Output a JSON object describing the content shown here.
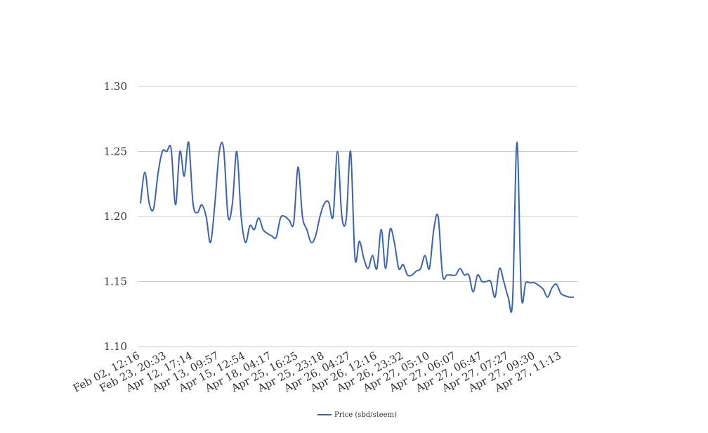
{
  "chart_data": {
    "type": "line",
    "title": "",
    "xlabel": "",
    "ylabel": "",
    "ylim": [
      1.1,
      1.3
    ],
    "y_ticks": [
      "1.10",
      "1.15",
      "1.20",
      "1.25",
      "1.30"
    ],
    "x_tick_labels": [
      "Feb 02, 12:16",
      "Feb 23, 20:33",
      "Apr 12, 17:14",
      "Apr 13, 09:57",
      "Apr 15, 12:54",
      "Apr 18, 04:17",
      "Apr 25, 16:25",
      "Apr 25, 23:18",
      "Apr 26, 04:27",
      "Apr 26, 12:16",
      "Apr 26, 23:32",
      "Apr 27, 05:10",
      "Apr 27, 06:07",
      "Apr 27, 06:47",
      "Apr 27, 07:27",
      "Apr 27, 09:30",
      "Apr 27, 11:13"
    ],
    "grid": true,
    "legend": "bottom",
    "series": [
      {
        "name": "Price (sbd/steem)",
        "color": "#3b63b3",
        "values": [
          1.21,
          1.234,
          1.21,
          1.206,
          1.233,
          1.25,
          1.25,
          1.252,
          1.209,
          1.25,
          1.231,
          1.257,
          1.21,
          1.203,
          1.209,
          1.2,
          1.18,
          1.21,
          1.25,
          1.252,
          1.2,
          1.21,
          1.25,
          1.2,
          1.18,
          1.193,
          1.19,
          1.199,
          1.19,
          1.187,
          1.185,
          1.184,
          1.199,
          1.2,
          1.197,
          1.195,
          1.238,
          1.2,
          1.19,
          1.18,
          1.185,
          1.2,
          1.21,
          1.211,
          1.2,
          1.25,
          1.2,
          1.198,
          1.25,
          1.168,
          1.181,
          1.168,
          1.16,
          1.17,
          1.16,
          1.19,
          1.16,
          1.19,
          1.18,
          1.16,
          1.163,
          1.155,
          1.155,
          1.158,
          1.16,
          1.17,
          1.16,
          1.19,
          1.2,
          1.155,
          1.155,
          1.155,
          1.155,
          1.16,
          1.155,
          1.155,
          1.142,
          1.155,
          1.15,
          1.15,
          1.15,
          1.138,
          1.16,
          1.15,
          1.138,
          1.135,
          1.257,
          1.14,
          1.149,
          1.149,
          1.149,
          1.147,
          1.144,
          1.138,
          1.145,
          1.148,
          1.141,
          1.139,
          1.138,
          1.138
        ]
      }
    ]
  }
}
